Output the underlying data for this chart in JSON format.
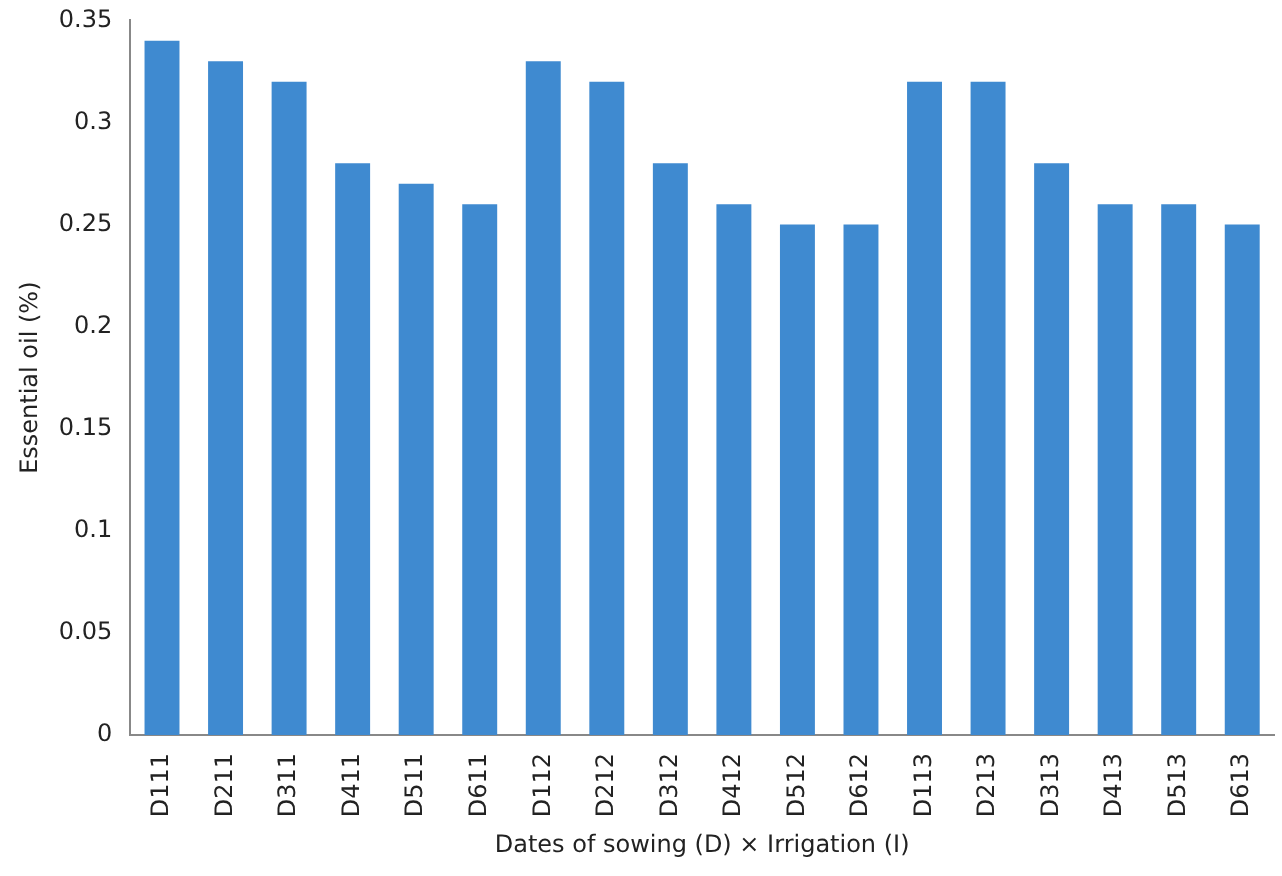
{
  "chart_data": {
    "type": "bar",
    "xlabel": "Dates of sowing (D) × Irrigation (I)",
    "ylabel": "Essential oil (%)",
    "categories": [
      "D111",
      "D211",
      "D311",
      "D411",
      "D511",
      "D611",
      "D112",
      "D212",
      "D312",
      "D412",
      "D512",
      "D612",
      "D113",
      "D213",
      "D313",
      "D413",
      "D513",
      "D613"
    ],
    "values": [
      0.34,
      0.33,
      0.32,
      0.28,
      0.27,
      0.26,
      0.33,
      0.32,
      0.28,
      0.26,
      0.25,
      0.25,
      0.32,
      0.32,
      0.28,
      0.26,
      0.26,
      0.25
    ],
    "color": "#3f8ad0",
    "ylim": [
      0,
      0.35
    ],
    "yticks": [
      0,
      0.05,
      0.1,
      0.15,
      0.2,
      0.25,
      0.3,
      0.35
    ],
    "grid": false,
    "legend": false
  }
}
